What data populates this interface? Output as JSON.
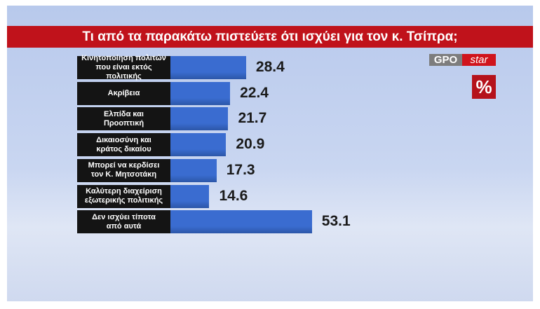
{
  "chart_data": {
    "type": "bar",
    "orientation": "horizontal",
    "title": "Τι από τα παρακάτω πιστεύετε ότι ισχύει για τον κ. Τσίπρα;",
    "categories": [
      "Κινητοποίηση πολιτών\nπου είναι εκτός πολιτικής",
      "Ακρίβεια",
      "Ελπίδα και\nΠροοπτική",
      "Δικαιοσύνη και\nκράτος δικαίου",
      "Μπορεί να κερδίσει\nτον Κ. Μητσοτάκη",
      "Καλύτερη διαχείριση\nεξωτερικής πολιτικής",
      "Δεν ισχύει τίποτα\nαπό αυτά"
    ],
    "values": [
      28.4,
      22.4,
      21.7,
      20.9,
      17.3,
      14.6,
      53.1
    ],
    "color": "#3a6cd0",
    "source_logo": "GPO",
    "channel_logo": "star",
    "unit_badge": "%"
  }
}
